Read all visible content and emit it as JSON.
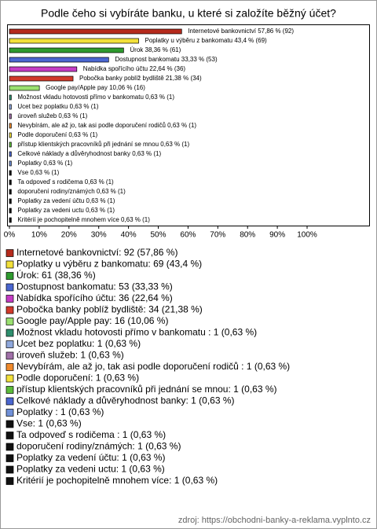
{
  "chart_data": {
    "type": "bar",
    "orientation": "horizontal",
    "title": "Podle čeho si vybíráte banku, u které si založíte běžný účet?",
    "categories": [
      "Internetové bankovnictví",
      "Poplatky u výběru z bankomatu",
      "Úrok",
      "Dostupnost bankomatu",
      "Nabídka spořícího účtu",
      "Pobočka banky poblíž bydliště",
      "Google pay/Apple pay",
      "Možnost vkladu hotovosti přímo v bankomatu",
      "Ucet bez poplatku",
      "úroveň služeb",
      "Nevybírám, ale až jo, tak asi podle doporučení rodičů",
      "Podle doporučení",
      "přístup klientských pracovníků při jednání se mnou",
      "Celkové náklady a důvěryhodnost banky",
      "Poplatky",
      "Vse",
      "Ta odpoveď s rodičema",
      "doporučení rodiny/známých",
      "Poplatky za vedení účtu",
      "Poplatky za vedeni uctu",
      "Kritérií je pochopitelně mnohem více"
    ],
    "values": [
      57.86,
      43.4,
      38.36,
      33.33,
      22.64,
      21.38,
      10.06,
      0.63,
      0.63,
      0.63,
      0.63,
      0.63,
      0.63,
      0.63,
      0.63,
      0.63,
      0.63,
      0.63,
      0.63,
      0.63,
      0.63
    ],
    "value_labels": [
      "Internetové bankovnictví 57,86 % (92)",
      "Poplatky u výběru z bankomatu 43,4 % (69)",
      "Úrok 38,36 % (61)",
      "Dostupnost bankomatu 33,33 % (53)",
      "Nabídka spořícího účtu 22,64 % (36)",
      "Pobočka banky poblíž bydliště 21,38 % (34)",
      "Google pay/Apple pay 10,06 % (16)",
      "Možnost vkladu hotovosti přímo v bankomatu  0,63 % (1)",
      "Ucet bez poplatku 0,63 % (1)",
      "úroveň služeb 0,63 % (1)",
      "Nevybírám, ale až jo, tak asi podle doporučení rodičů  0,63 % (1)",
      "Podle doporučení 0,63 % (1)",
      "přístup klientských pracovníků při jednání se mnou 0,63 % (1)",
      "Celkové náklady a důvěryhodnost banky 0,63 % (1)",
      "Poplatky  0,63 % (1)",
      "Vse 0,63 % (1)",
      "Ta odpoveď s rodičema  0,63 % (1)",
      "doporučení rodiny/známých 0,63 % (1)",
      "Poplatky za vedení účtu 0,63 % (1)",
      "Poplatky za vedeni uctu 0,63 % (1)",
      "Kritérií je pochopitelně mnohem více 0,63 % (1)"
    ],
    "legend_labels": [
      "Internetové bankovnictví: 92 (57,86 %)",
      "Poplatky u výběru z bankomatu: 69 (43,4 %)",
      "Úrok: 61 (38,36 %)",
      "Dostupnost bankomatu: 53 (33,33 %)",
      "Nabídka spořícího účtu: 36 (22,64 %)",
      "Pobočka banky poblíž bydliště: 34 (21,38 %)",
      "Google pay/Apple pay: 16 (10,06 %)",
      "Možnost vkladu hotovosti přímo v bankomatu : 1 (0,63 %)",
      "Ucet bez poplatku: 1 (0,63 %)",
      "úroveň služeb: 1 (0,63 %)",
      "Nevybírám, ale až jo, tak asi podle doporučení rodičů : 1 (0,63 %)",
      "Podle doporučení: 1 (0,63 %)",
      "přístup klientských pracovníků při jednání se mnou: 1 (0,63 %)",
      "Celkové náklady a důvěryhodnost banky: 1 (0,63 %)",
      "Poplatky : 1 (0,63 %)",
      "Vse: 1 (0,63 %)",
      "Ta odpoveď s rodičema : 1 (0,63 %)",
      "doporučení rodiny/známých: 1 (0,63 %)",
      "Poplatky za vedení účtu: 1 (0,63 %)",
      "Poplatky za vedeni uctu: 1 (0,63 %)",
      "Kritérií je pochopitelně mnohem více: 1 (0,63 %)"
    ],
    "colors": [
      "#b52a1c",
      "#f2e03a",
      "#2e9a2e",
      "#4a66d0",
      "#c43cc4",
      "#d23a2a",
      "#9ae070",
      "#2e8f6e",
      "#8fa8dc",
      "#a070a8",
      "#f08a2c",
      "#f2e03a",
      "#5cbc3a",
      "#4a66d0",
      "#7090d8",
      "#111111",
      "#111111",
      "#111111",
      "#111111",
      "#111111",
      "#111111"
    ],
    "xlim": [
      0,
      100
    ],
    "xticks": [
      {
        "value": 0,
        "label": "0%"
      },
      {
        "value": 10,
        "label": "10%"
      },
      {
        "value": 20,
        "label": "20%"
      },
      {
        "value": 30,
        "label": "30%"
      },
      {
        "value": 40,
        "label": "40%"
      },
      {
        "value": 50,
        "label": "50%"
      },
      {
        "value": 60,
        "label": "60%"
      },
      {
        "value": 70,
        "label": "70%"
      },
      {
        "value": 80,
        "label": "80%"
      },
      {
        "value": 90,
        "label": "90%"
      },
      {
        "value": 100,
        "label": "100%"
      }
    ],
    "grid": false,
    "source": "zdroj: https://obchodni-banky-a-reklama.vyplnto.cz"
  }
}
